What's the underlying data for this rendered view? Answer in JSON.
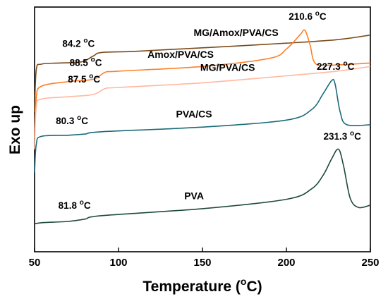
{
  "chart_data": {
    "type": "line",
    "xlabel": "Temperature (",
    "xlabel_sup": "o",
    "xlabel_end": "C)",
    "ylabel": "Exo up",
    "xlim": [
      50,
      250
    ],
    "x_ticks": [
      "50",
      "100",
      "150",
      "200",
      "250"
    ],
    "y_ticks_shown": false,
    "grid": false,
    "legend": "none",
    "series": [
      {
        "name": "MG/Amox/PVA/CS",
        "color": "#7a4a1a",
        "points": [
          [
            50,
            0.0
          ],
          [
            51,
            1.8
          ],
          [
            54,
            2.05
          ],
          [
            65,
            2.1
          ],
          [
            78,
            2.15
          ],
          [
            85,
            2.4
          ],
          [
            90,
            2.55
          ],
          [
            110,
            2.6
          ],
          [
            150,
            2.75
          ],
          [
            200,
            2.95
          ],
          [
            230,
            3.1
          ],
          [
            250,
            3.3
          ]
        ],
        "annotations": [
          {
            "x": 84.2,
            "text": "84.2 ",
            "sup": "o",
            "end": "C"
          }
        ]
      },
      {
        "name": "Amox/PVA/CS",
        "color": "#ff7f27",
        "points": [
          [
            50,
            -1.1
          ],
          [
            51,
            0.6
          ],
          [
            54,
            1.1
          ],
          [
            70,
            1.3
          ],
          [
            85,
            1.4
          ],
          [
            92,
            1.7
          ],
          [
            100,
            1.75
          ],
          [
            150,
            1.95
          ],
          [
            190,
            2.3
          ],
          [
            200,
            2.7
          ],
          [
            208,
            3.3
          ],
          [
            211,
            3.5
          ],
          [
            214,
            2.9
          ],
          [
            217,
            2.1
          ],
          [
            225,
            2.0
          ],
          [
            250,
            2.1
          ]
        ],
        "annotations": [
          {
            "x": 88.5,
            "text": "88.5 ",
            "sup": "o",
            "end": "C"
          },
          {
            "x": 210.6,
            "text": "210.6 ",
            "sup": "o",
            "end": "C"
          }
        ]
      },
      {
        "name": "MG/PVA/CS",
        "color": "#ffb8a0",
        "points": [
          [
            50,
            -1.6
          ],
          [
            51,
            0.2
          ],
          [
            54,
            0.55
          ],
          [
            70,
            0.65
          ],
          [
            85,
            0.75
          ],
          [
            92,
            1.0
          ],
          [
            100,
            1.05
          ],
          [
            150,
            1.25
          ],
          [
            200,
            1.55
          ],
          [
            230,
            1.75
          ],
          [
            250,
            1.95
          ]
        ],
        "annotations": [
          {
            "x": 87.5,
            "text": "87.5 ",
            "sup": "o",
            "end": "C"
          }
        ]
      },
      {
        "name": "PVA/CS",
        "color": "#1a6a7a",
        "points": [
          [
            50,
            -2.6
          ],
          [
            51,
            -1.4
          ],
          [
            54,
            -1.05
          ],
          [
            70,
            -1.0
          ],
          [
            80,
            -0.95
          ],
          [
            90,
            -0.85
          ],
          [
            150,
            -0.65
          ],
          [
            200,
            -0.35
          ],
          [
            215,
            0.1
          ],
          [
            222,
            0.8
          ],
          [
            227,
            1.35
          ],
          [
            229,
            1.2
          ],
          [
            232,
            0.0
          ],
          [
            236,
            -0.55
          ],
          [
            250,
            -0.55
          ]
        ],
        "annotations": [
          {
            "x": 80.3,
            "text": "80.3 ",
            "sup": "o",
            "end": "C"
          },
          {
            "x": 227.3,
            "text": "227.3 ",
            "sup": "o",
            "end": "C"
          }
        ]
      },
      {
        "name": "PVA",
        "color": "#1e4a3a",
        "points": [
          [
            50,
            -4.8
          ],
          [
            55,
            -4.75
          ],
          [
            70,
            -4.7
          ],
          [
            80,
            -4.6
          ],
          [
            90,
            -4.45
          ],
          [
            150,
            -4.15
          ],
          [
            200,
            -3.75
          ],
          [
            215,
            -3.3
          ],
          [
            222,
            -2.7
          ],
          [
            227,
            -2.0
          ],
          [
            231,
            -1.6
          ],
          [
            234,
            -2.3
          ],
          [
            238,
            -3.7
          ],
          [
            243,
            -4.1
          ],
          [
            250,
            -4.0
          ]
        ],
        "annotations": [
          {
            "x": 81.8,
            "text": "81.8 ",
            "sup": "o",
            "end": "C"
          },
          {
            "x": 231.3,
            "text": "231.3 ",
            "sup": "o",
            "end": "C"
          }
        ]
      }
    ]
  }
}
